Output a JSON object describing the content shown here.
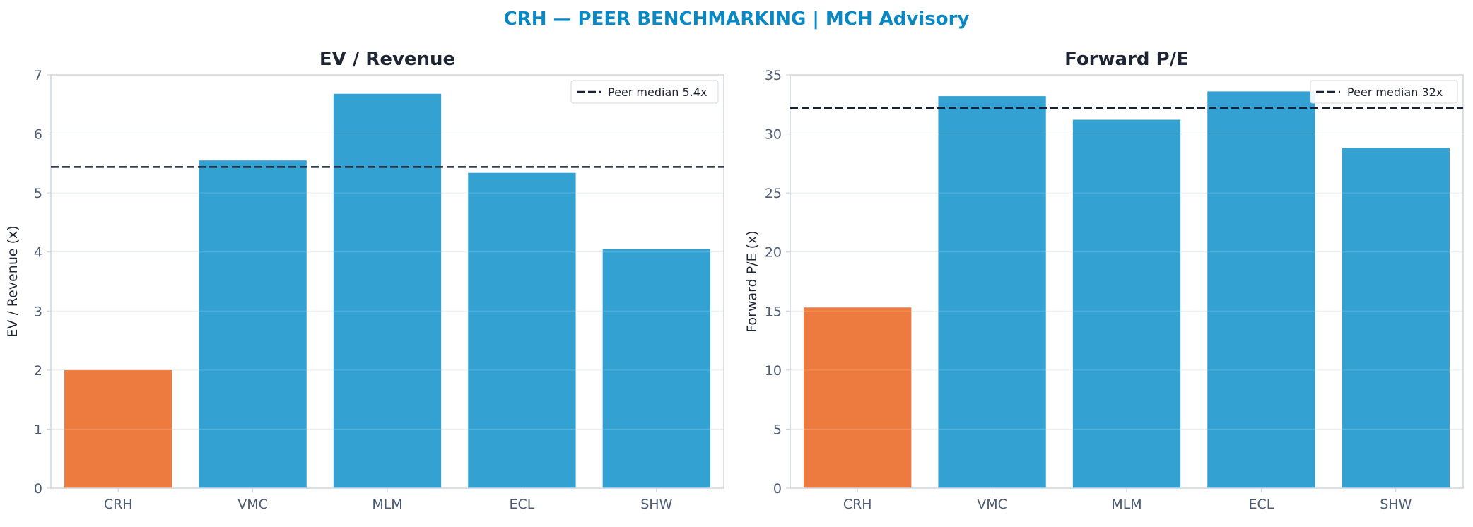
{
  "suptitle": "CRH — PEER BENCHMARKING | MCH Advisory",
  "colors": {
    "title": "#0a88c4",
    "subject_bar": "#ed7b3f",
    "peer_bar": "#33a2d3",
    "median_line": "#1a2238",
    "axis_text": "#4d5b73",
    "title_text": "#1f2633",
    "grid": "#e3e9ef",
    "spine": "#cfd6df"
  },
  "chart_data": [
    {
      "type": "bar",
      "title": "EV / Revenue",
      "ylabel": "EV / Revenue (x)",
      "categories": [
        "CRH",
        "VMC",
        "MLM",
        "ECL",
        "SHW"
      ],
      "values": [
        2.0,
        5.55,
        6.68,
        5.34,
        4.05
      ],
      "highlight": "CRH",
      "ylim": [
        0,
        7
      ],
      "yticks": [
        0,
        1,
        2,
        3,
        4,
        5,
        6,
        7
      ],
      "reference_line": {
        "value": 5.44,
        "label": "Peer median 5.4x",
        "style": "dashed"
      },
      "legend_position": "top-right",
      "grid": "y"
    },
    {
      "type": "bar",
      "title": "Forward P/E",
      "ylabel": "Forward P/E (x)",
      "categories": [
        "CRH",
        "VMC",
        "MLM",
        "ECL",
        "SHW"
      ],
      "values": [
        15.3,
        33.2,
        31.2,
        33.6,
        28.8
      ],
      "highlight": "CRH",
      "ylim": [
        0,
        35
      ],
      "yticks": [
        0,
        5,
        10,
        15,
        20,
        25,
        30,
        35
      ],
      "reference_line": {
        "value": 32.2,
        "label": "Peer median 32x",
        "style": "dashed"
      },
      "legend_position": "top-right",
      "grid": "y"
    }
  ]
}
